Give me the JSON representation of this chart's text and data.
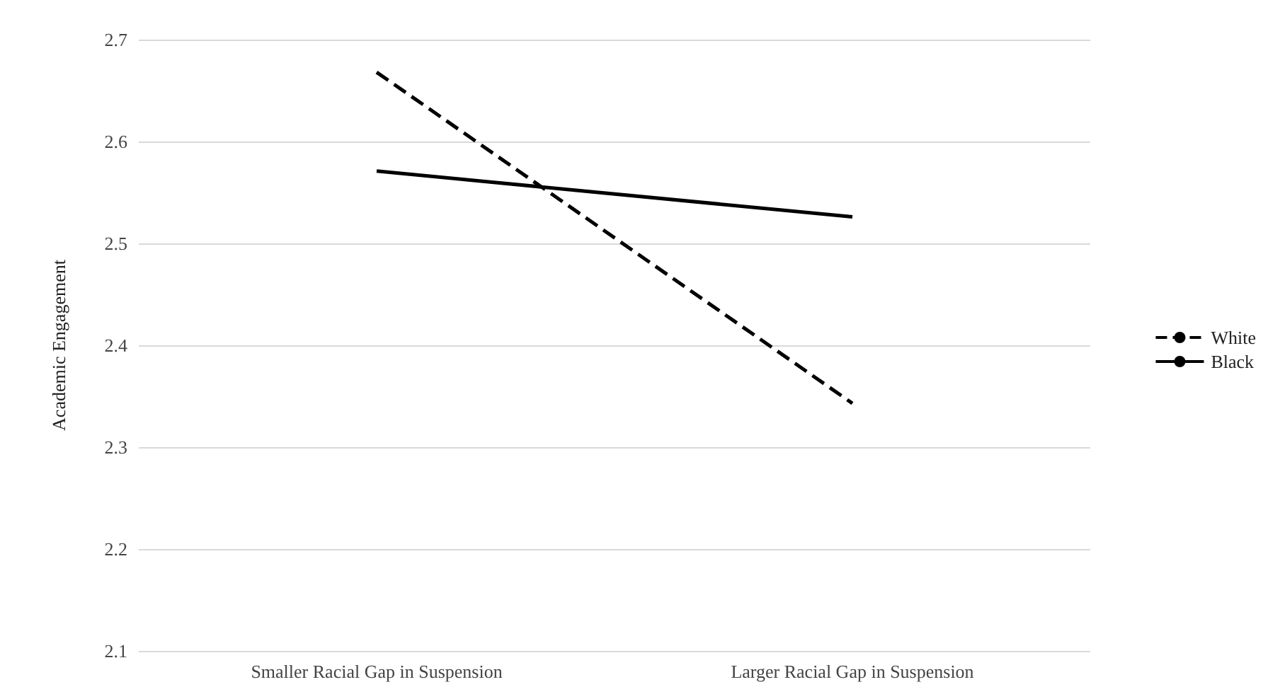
{
  "chart_data": {
    "type": "line",
    "ylabel": "Academic Engagement",
    "categories": [
      "Smaller Racial Gap in Suspension",
      "Larger Racial Gap in Suspension"
    ],
    "series": [
      {
        "name": "White",
        "color": "#000000",
        "values": [
          2.668,
          2.343
        ],
        "line_style": "dashed"
      },
      {
        "name": "Black",
        "color": "#000000",
        "values": [
          2.571,
          2.526
        ],
        "line_style": "solid"
      }
    ],
    "ylim": [
      2.1,
      2.7
    ],
    "yticks": [
      2.1,
      2.2,
      2.3,
      2.4,
      2.5,
      2.6,
      2.7
    ],
    "grid": "y",
    "legend": "right",
    "marker": "none"
  }
}
